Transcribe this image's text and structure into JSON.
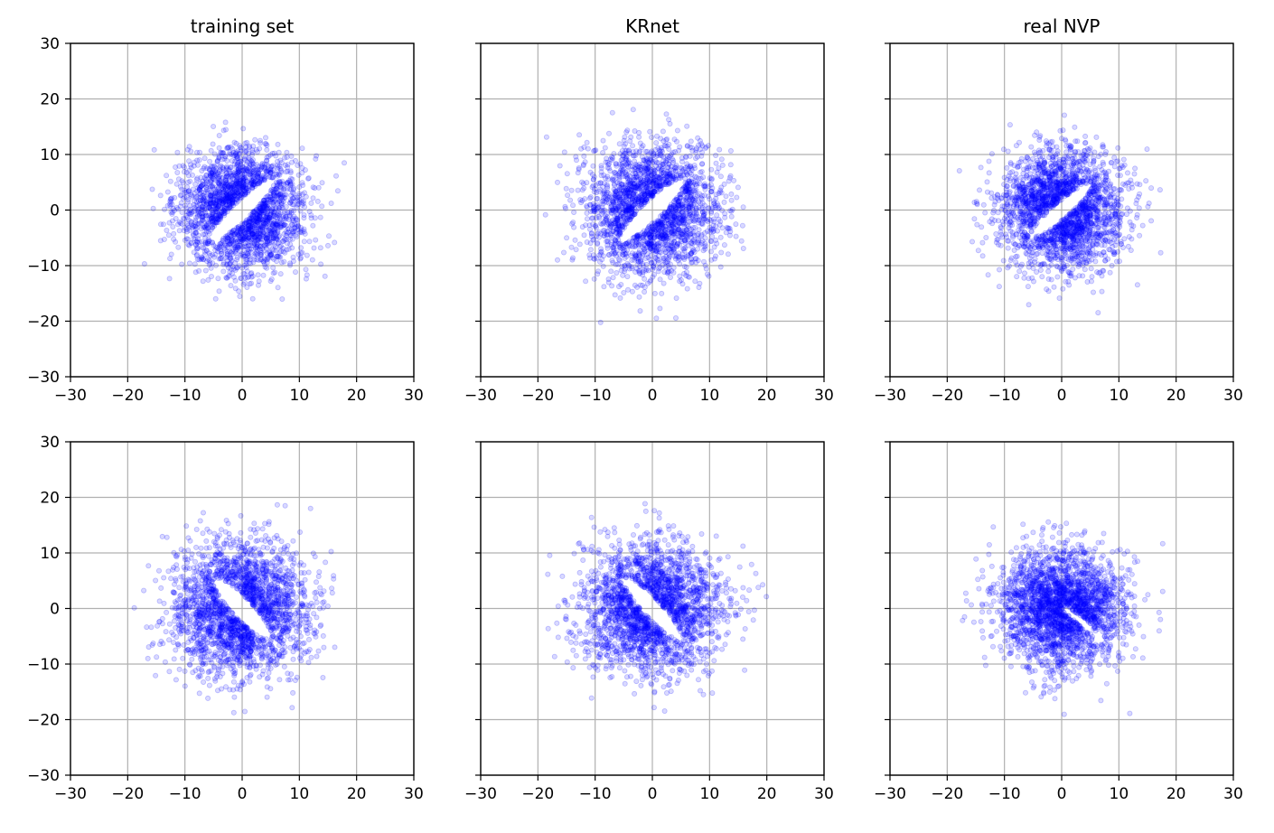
{
  "figure": {
    "panel_titles": [
      "training set",
      "KRnet",
      "real NVP"
    ]
  },
  "colors": {
    "points": "#0000ff",
    "grid": "#b0b0b0",
    "axes": "#000000",
    "hole": "#ffffff"
  },
  "chart_data": [
    {
      "type": "scatter",
      "title": "training set",
      "row": 1,
      "xlim": [
        -30,
        30
      ],
      "ylim": [
        -30,
        30
      ],
      "xticks": [
        -30,
        -20,
        -10,
        0,
        10,
        20,
        30
      ],
      "yticks": [
        -30,
        -20,
        -10,
        0,
        10,
        20,
        30
      ],
      "ytick_labels_shown": true,
      "grid": true,
      "marker_alpha": 0.15,
      "sample_spread": {
        "center": [
          0,
          0
        ],
        "radius_bulk": 11,
        "extent": [
          -23,
          24,
          -21,
          18
        ]
      },
      "empty_region": {
        "center": [
          0,
          0
        ],
        "semi_axes": [
          8,
          1.6
        ],
        "angle_deg": 45
      }
    },
    {
      "type": "scatter",
      "title": "KRnet",
      "row": 1,
      "xlim": [
        -30,
        30
      ],
      "ylim": [
        -30,
        30
      ],
      "xticks": [
        -30,
        -20,
        -10,
        0,
        10,
        20,
        30
      ],
      "yticks": [
        -30,
        -20,
        -10,
        0,
        10,
        20,
        30
      ],
      "ytick_labels_shown": false,
      "grid": true,
      "marker_alpha": 0.15,
      "sample_spread": {
        "center": [
          0,
          0
        ],
        "radius_bulk": 12,
        "extent": [
          -20,
          16,
          -23,
          21
        ]
      },
      "empty_region": {
        "center": [
          0,
          0
        ],
        "semi_axes": [
          8,
          1.7
        ],
        "angle_deg": 45
      }
    },
    {
      "type": "scatter",
      "title": "real NVP",
      "row": 1,
      "xlim": [
        -30,
        30
      ],
      "ylim": [
        -30,
        30
      ],
      "xticks": [
        -30,
        -20,
        -10,
        0,
        10,
        20,
        30
      ],
      "yticks": [
        -30,
        -20,
        -10,
        0,
        10,
        20,
        30
      ],
      "ytick_labels_shown": false,
      "grid": true,
      "marker_alpha": 0.15,
      "sample_spread": {
        "center": [
          0,
          0
        ],
        "radius_bulk": 11,
        "extent": [
          -20,
          21,
          -23,
          23
        ]
      },
      "empty_region": {
        "center": [
          0,
          0
        ],
        "semi_axes": [
          7,
          1.4
        ],
        "angle_deg": 42
      }
    },
    {
      "type": "scatter",
      "row": 2,
      "xlim": [
        -30,
        30
      ],
      "ylim": [
        -30,
        30
      ],
      "xticks": [
        -30,
        -20,
        -10,
        0,
        10,
        20,
        30
      ],
      "yticks": [
        -30,
        -20,
        -10,
        0,
        10,
        20,
        30
      ],
      "ytick_labels_shown": true,
      "grid": true,
      "marker_alpha": 0.15,
      "sample_spread": {
        "center": [
          0,
          0
        ],
        "radius_bulk": 12,
        "extent": [
          -23,
          17,
          -21,
          24
        ]
      },
      "empty_region": {
        "center": [
          0,
          0
        ],
        "semi_axes": [
          7.2,
          1.8
        ],
        "angle_deg": -48
      }
    },
    {
      "type": "scatter",
      "row": 2,
      "xlim": [
        -30,
        30
      ],
      "ylim": [
        -30,
        30
      ],
      "xticks": [
        -30,
        -20,
        -10,
        0,
        10,
        20,
        30
      ],
      "yticks": [
        -30,
        -20,
        -10,
        0,
        10,
        20,
        30
      ],
      "ytick_labels_shown": false,
      "grid": true,
      "marker_alpha": 0.15,
      "sample_spread": {
        "center": [
          0,
          0
        ],
        "radius_bulk": 12,
        "extent": [
          -21,
          20,
          -20,
          19
        ]
      },
      "empty_region": {
        "center": [
          0,
          0
        ],
        "semi_axes": [
          7.3,
          1.6
        ],
        "angle_deg": -48
      }
    },
    {
      "type": "scatter",
      "row": 2,
      "xlim": [
        -30,
        30
      ],
      "ylim": [
        -30,
        30
      ],
      "xticks": [
        -30,
        -20,
        -10,
        0,
        10,
        20,
        30
      ],
      "yticks": [
        -30,
        -20,
        -10,
        0,
        10,
        20,
        30
      ],
      "ytick_labels_shown": false,
      "grid": true,
      "marker_alpha": 0.15,
      "sample_spread": {
        "center": [
          0,
          0
        ],
        "radius_bulk": 11,
        "extent": [
          -20,
          22,
          -25,
          22
        ]
      },
      "empty_region": {
        "center": [
          3,
          -2
        ],
        "semi_axes": [
          4,
          0.6
        ],
        "angle_deg": -40
      }
    }
  ]
}
